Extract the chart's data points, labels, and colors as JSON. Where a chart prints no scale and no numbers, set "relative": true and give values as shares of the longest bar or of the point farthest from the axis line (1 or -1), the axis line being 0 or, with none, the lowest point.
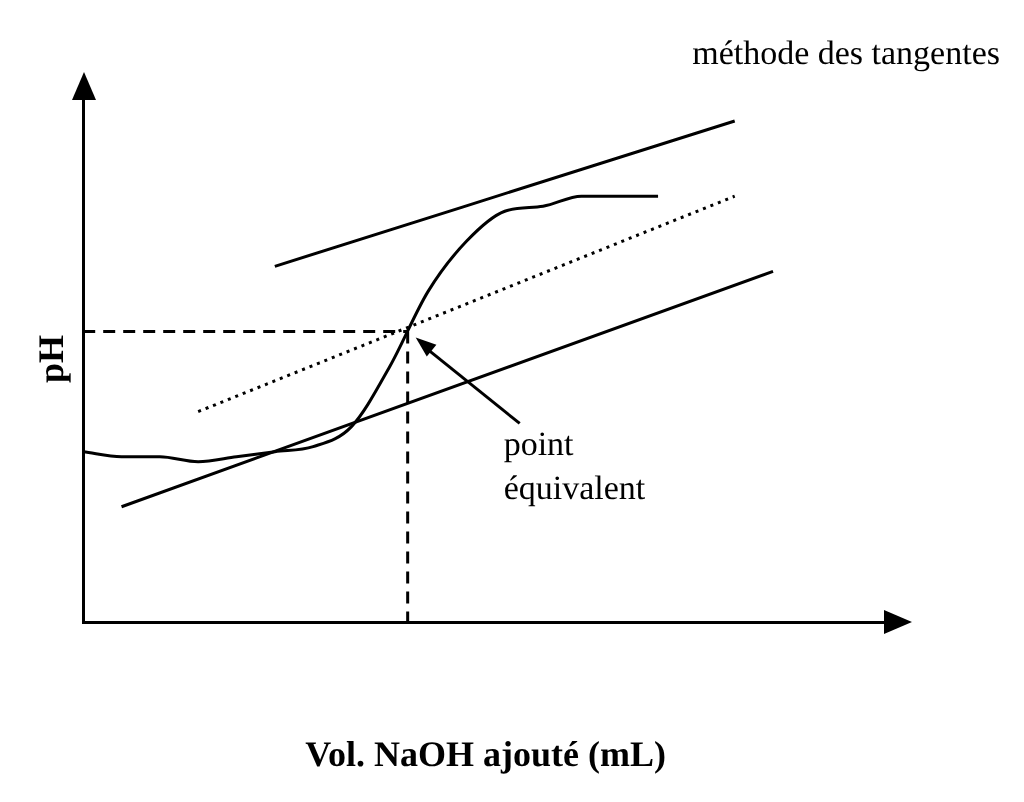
{
  "chart_data": {
    "type": "line",
    "relative": true,
    "xlabel": "Vol. NaOH ajouté (mL)",
    "ylabel": "pH",
    "grid": false,
    "legend": false,
    "marker": "none",
    "categories": [
      null,
      null,
      null,
      null,
      null,
      null,
      null,
      null,
      null,
      null,
      null,
      null,
      null,
      null,
      null,
      null,
      null,
      null,
      null,
      null,
      null,
      null
    ],
    "series": [
      {
        "color": "#000000",
        "line_style": "solid",
        "values": [
          0.34,
          0.33,
          0.33,
          0.32,
          0.33,
          0.34,
          0.35,
          0.39,
          0.51,
          0.66,
          0.76,
          0.82,
          0.83,
          0.85,
          0.85,
          0.85,
          null,
          null,
          null,
          null,
          null,
          null
        ]
      },
      {
        "color": "#000000",
        "line_style": "solid",
        "values": [
          null,
          null,
          null,
          null,
          null,
          0.71,
          null,
          null,
          null,
          null,
          null,
          null,
          null,
          null,
          null,
          null,
          null,
          1.0,
          null,
          null,
          null,
          null
        ]
      },
      {
        "color": "#000000",
        "line_style": "solid",
        "values": [
          null,
          0.23,
          null,
          null,
          null,
          null,
          null,
          null,
          null,
          null,
          null,
          null,
          null,
          null,
          null,
          null,
          null,
          null,
          0.7,
          null,
          null,
          null
        ]
      },
      {
        "color": "#000000",
        "line_style": "dotted",
        "values": [
          null,
          null,
          null,
          0.42,
          null,
          null,
          null,
          null,
          null,
          null,
          null,
          null,
          null,
          null,
          null,
          null,
          null,
          0.85,
          null,
          null,
          null,
          null
        ]
      }
    ],
    "ref_lines": [
      {
        "axis": "y",
        "value": 0.58,
        "color": "#000000",
        "line_style": "dashed"
      }
    ],
    "annotations": [
      "méthode des tangentes",
      "point équivalent"
    ]
  }
}
